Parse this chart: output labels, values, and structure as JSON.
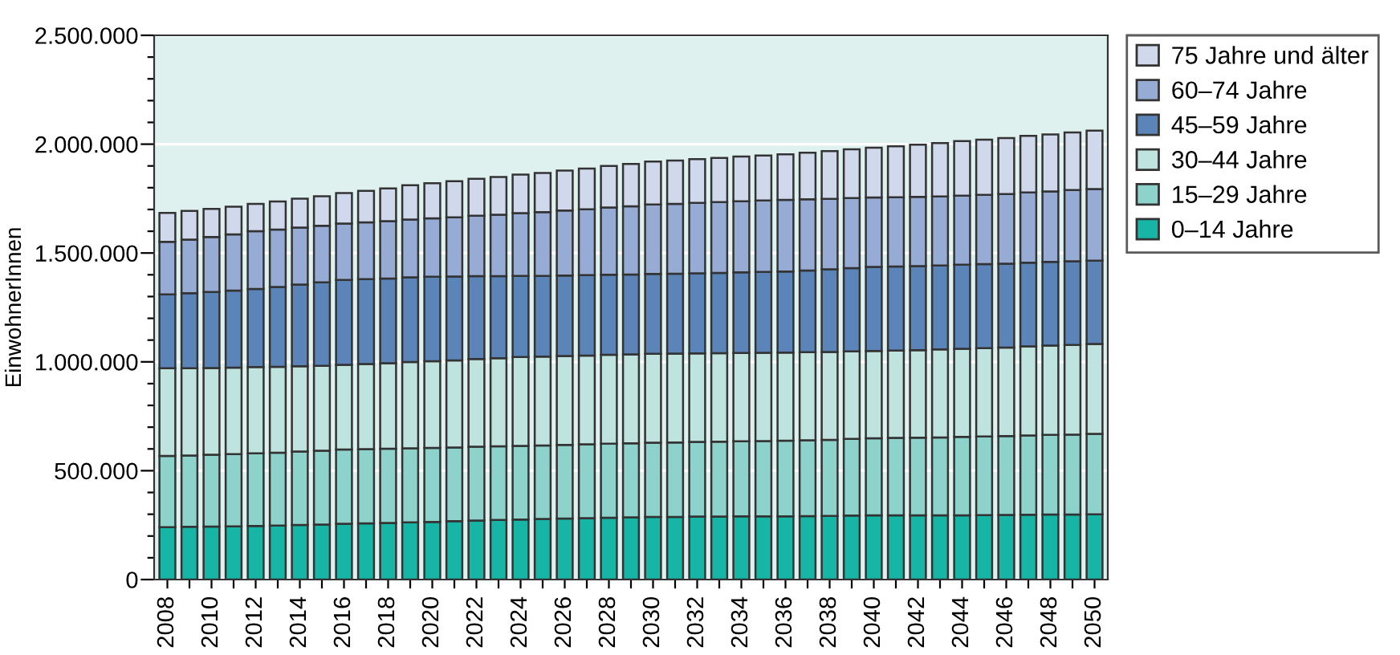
{
  "chart_data": {
    "type": "bar",
    "stacked": true,
    "ylabel": "EinwohnerInnen",
    "categories": [
      "2008",
      null,
      "2010",
      null,
      "2012",
      null,
      "2014",
      null,
      "2016",
      null,
      "2018",
      null,
      "2020",
      null,
      "2022",
      null,
      "2024",
      null,
      "2026",
      null,
      "2028",
      null,
      "2030",
      null,
      "2032",
      null,
      "2034",
      null,
      "2036",
      null,
      "2038",
      null,
      "2040",
      null,
      "2042",
      null,
      "2044",
      null,
      "2046",
      null,
      "2048",
      null,
      "2050"
    ],
    "series": [
      {
        "name": "0–14 Jahre",
        "color": "#17b5a6",
        "values": [
          241000,
          242000,
          243000,
          244000,
          246000,
          248000,
          251000,
          253000,
          256000,
          258000,
          260000,
          263000,
          265000,
          268000,
          271000,
          274000,
          276000,
          278000,
          280000,
          282000,
          284000,
          286000,
          288000,
          288000,
          289000,
          289000,
          290000,
          290000,
          290000,
          291000,
          292000,
          294000,
          295000,
          295000,
          295000,
          295000,
          295000,
          296000,
          297000,
          298000,
          299000,
          299000,
          300000
        ]
      },
      {
        "name": "15–29 Jahre",
        "color": "#8dd3cb",
        "values": [
          327000,
          328000,
          330000,
          332000,
          334000,
          335000,
          337000,
          339000,
          341000,
          341000,
          341000,
          340000,
          340000,
          339000,
          339000,
          338000,
          338000,
          338000,
          339000,
          339000,
          340000,
          340000,
          341000,
          342000,
          343000,
          344000,
          345000,
          346000,
          348000,
          349000,
          350000,
          352000,
          354000,
          356000,
          357000,
          358000,
          360000,
          361000,
          362000,
          364000,
          366000,
          367000,
          369000
        ]
      },
      {
        "name": "30–44 Jahre",
        "color": "#bfe3de",
        "values": [
          403000,
          401000,
          399000,
          397000,
          396000,
          394000,
          392000,
          390000,
          389000,
          391000,
          393000,
          396000,
          398000,
          400000,
          403000,
          405000,
          408000,
          408000,
          408000,
          408000,
          408000,
          408000,
          408000,
          408000,
          407000,
          407000,
          406000,
          406000,
          405000,
          404000,
          403000,
          402000,
          401000,
          401000,
          402000,
          404000,
          405000,
          406000,
          407000,
          409000,
          410000,
          412000,
          413000
        ]
      },
      {
        "name": "45–59 Jahre",
        "color": "#5b84b8",
        "values": [
          339000,
          344000,
          349000,
          354000,
          359000,
          367000,
          375000,
          383000,
          390000,
          390000,
          389000,
          389000,
          388000,
          385000,
          381000,
          377000,
          373000,
          371000,
          370000,
          369000,
          368000,
          367000,
          367000,
          367000,
          368000,
          369000,
          370000,
          371000,
          372000,
          376000,
          380000,
          383000,
          386000,
          386000,
          386000,
          386000,
          386000,
          386000,
          385000,
          385000,
          384000,
          384000,
          383000
        ]
      },
      {
        "name": "60–74 Jahre",
        "color": "#97acd4",
        "values": [
          241000,
          247000,
          253000,
          259000,
          265000,
          264000,
          262000,
          260000,
          259000,
          261000,
          263000,
          266000,
          268000,
          272000,
          277000,
          282000,
          288000,
          293000,
          298000,
          303000,
          309000,
          314000,
          319000,
          321000,
          323000,
          325000,
          327000,
          328000,
          329000,
          327000,
          324000,
          321000,
          319000,
          318000,
          318000,
          317000,
          317000,
          318000,
          320000,
          322000,
          324000,
          327000,
          329000
        ]
      },
      {
        "name": "75 Jahre und älter",
        "color": "#d0d8ec",
        "values": [
          133000,
          131000,
          129000,
          127000,
          126000,
          129000,
          133000,
          136000,
          140000,
          145000,
          151000,
          157000,
          162000,
          166000,
          170000,
          173000,
          177000,
          180000,
          184000,
          187000,
          191000,
          194000,
          197000,
          199000,
          201000,
          203000,
          205000,
          207000,
          209000,
          214000,
          219000,
          224000,
          229000,
          234000,
          240000,
          245000,
          251000,
          254000,
          257000,
          260000,
          262000,
          265000,
          268000
        ]
      }
    ],
    "ylim": [
      0,
      2500000
    ],
    "yticks": [
      {
        "value": 0,
        "label": "0"
      },
      {
        "value": 100000,
        "label": null
      },
      {
        "value": 200000,
        "label": null
      },
      {
        "value": 300000,
        "label": null
      },
      {
        "value": 400000,
        "label": null
      },
      {
        "value": 500000,
        "label": "500.000"
      },
      {
        "value": 600000,
        "label": null
      },
      {
        "value": 700000,
        "label": null
      },
      {
        "value": 800000,
        "label": null
      },
      {
        "value": 900000,
        "label": null
      },
      {
        "value": 1000000,
        "label": "1.000.000"
      },
      {
        "value": 1100000,
        "label": null
      },
      {
        "value": 1200000,
        "label": null
      },
      {
        "value": 1300000,
        "label": null
      },
      {
        "value": 1400000,
        "label": null
      },
      {
        "value": 1500000,
        "label": "1.500.000"
      },
      {
        "value": 1600000,
        "label": null
      },
      {
        "value": 1700000,
        "label": null
      },
      {
        "value": 1800000,
        "label": null
      },
      {
        "value": 1900000,
        "label": null
      },
      {
        "value": 2000000,
        "label": "2.000.000"
      },
      {
        "value": 2100000,
        "label": null
      },
      {
        "value": 2200000,
        "label": null
      },
      {
        "value": 2300000,
        "label": null
      },
      {
        "value": 2400000,
        "label": null
      },
      {
        "value": 2500000,
        "label": "2.500.000"
      }
    ],
    "grid": "y",
    "legend": "top right"
  }
}
